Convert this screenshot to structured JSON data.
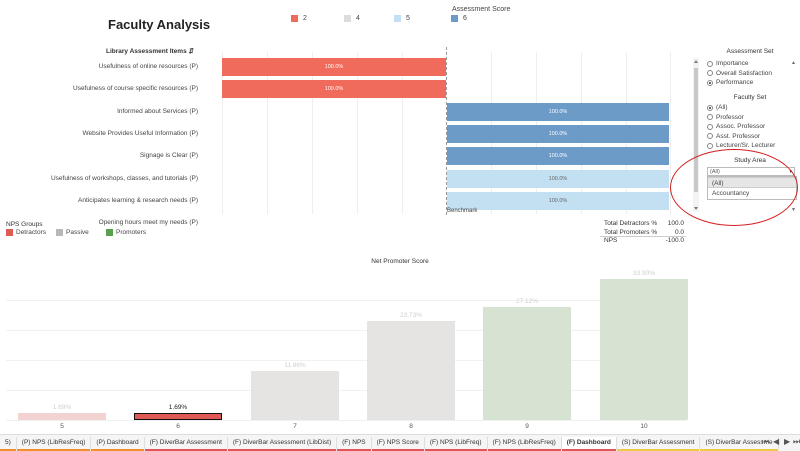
{
  "header": {
    "title": "Faculty Analysis"
  },
  "assessment_legend": {
    "title": "Assessment Score",
    "items": [
      {
        "label": "2",
        "color": "#f06b5b"
      },
      {
        "label": "4",
        "color": "#dcdcdc"
      },
      {
        "label": "5",
        "color": "#c3dff2"
      },
      {
        "label": "6",
        "color": "#6d9bc8"
      }
    ]
  },
  "items_chart": {
    "header": "Library Assessment Items",
    "benchmark_label": "Benchmark",
    "rows": [
      {
        "label": "Usefulness of online resources (P)",
        "value": "100.0%",
        "score": "2"
      },
      {
        "label": "Usefulness of course specific resources (P)",
        "value": "100.0%",
        "score": "2"
      },
      {
        "label": "Informed about Services (P)",
        "value": "100.0%",
        "score": "6"
      },
      {
        "label": "Website Provides Useful Information (P)",
        "value": "100.0%",
        "score": "6"
      },
      {
        "label": "Signage is Clear (P)",
        "value": "100.0%",
        "score": "6"
      },
      {
        "label": "Usefulness of workshops, classes, and tutorials (P)",
        "value": "100.0%",
        "score": "5"
      },
      {
        "label": "Anticipates learning & research needs (P)",
        "value": "100.0%",
        "score": "5"
      },
      {
        "label": "Opening hours meet my needs (P)",
        "value": "",
        "score": ""
      }
    ]
  },
  "filters": {
    "assessment_set": {
      "title": "Assessment Set",
      "options": [
        {
          "label": "Importance",
          "selected": false
        },
        {
          "label": "Overall Satisfaction",
          "selected": false
        },
        {
          "label": "Performance",
          "selected": true
        }
      ]
    },
    "faculty_set": {
      "title": "Faculty Set",
      "options": [
        {
          "label": "(All)",
          "selected": true
        },
        {
          "label": "Professor",
          "selected": false
        },
        {
          "label": "Assoc. Professor",
          "selected": false
        },
        {
          "label": "Asst. Professor",
          "selected": false
        },
        {
          "label": "Lecturer/Sr. Lecturer",
          "selected": false
        }
      ]
    },
    "study_area": {
      "title": "Study Area",
      "value": "(All)",
      "options": [
        "(All)",
        "Accountancy"
      ]
    }
  },
  "totals": [
    {
      "label": "Total Detractors %",
      "value": "100.0"
    },
    {
      "label": "Total Promoters %",
      "value": "0.0"
    },
    {
      "label": "NPS",
      "value": "-100.0"
    }
  ],
  "nps_groups": {
    "title": "NPS Groups",
    "items": [
      {
        "label": "Detractors",
        "color": "#e05a55"
      },
      {
        "label": "Passive",
        "color": "#b8b8b8"
      },
      {
        "label": "Promoters",
        "color": "#59a14f"
      }
    ]
  },
  "chart_data": {
    "type": "bar",
    "title": "Net Promoter Score",
    "categories": [
      "5",
      "6",
      "7",
      "8",
      "9",
      "10"
    ],
    "values": [
      1.69,
      1.69,
      11.86,
      23.73,
      27.12,
      33.9
    ],
    "labels": [
      "1.69%",
      "1.69%",
      "11.86%",
      "23.73%",
      "27.12%",
      "33.90%"
    ],
    "colors": [
      "#f2d3d1",
      "#e05a55",
      "#e6e4e2",
      "#e6e4e2",
      "#d6e3d2",
      "#d6e3d2"
    ],
    "highlighted": "6",
    "ylim": [
      0,
      36
    ]
  },
  "tabs": [
    {
      "label": "5)",
      "color": "#f28e2b",
      "active": false
    },
    {
      "label": "(P) NPS (LibResFreq)",
      "color": "#f28e2b",
      "active": false
    },
    {
      "label": "(P) Dashboard",
      "color": "#f28e2b",
      "active": false
    },
    {
      "label": "(F) DiverBar Assessment",
      "color": "#e15759",
      "active": false
    },
    {
      "label": "(F) DiverBar Assessment (LibDist)",
      "color": "#e15759",
      "active": false
    },
    {
      "label": "(F) NPS",
      "color": "#e15759",
      "active": false
    },
    {
      "label": "(F) NPS Score",
      "color": "#e15759",
      "active": false
    },
    {
      "label": "(F) NPS (LibFreq)",
      "color": "#e15759",
      "active": false
    },
    {
      "label": "(F) NPS (LibResFreq)",
      "color": "#e15759",
      "active": false
    },
    {
      "label": "(F) Dashboard",
      "color": "#e15759",
      "active": true
    },
    {
      "label": "(S) DiverBar Assessment",
      "color": "#edc948",
      "active": false
    },
    {
      "label": "(S) DiverBar Assessme",
      "color": "#edc948",
      "active": false
    }
  ]
}
